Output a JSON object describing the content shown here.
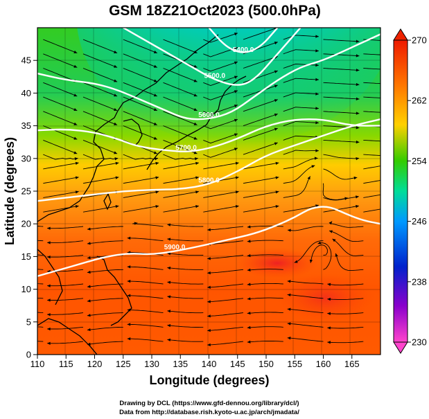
{
  "title": "GSM 18Z21Oct2023 (500.0hPa)",
  "xlabel": "Longitude (degrees)",
  "ylabel": "Latitude  (degrees)",
  "credit_line1": "Drawing by DCL (https://www.gfd-dennou.org/library/dcl/)",
  "credit_line2": "Data from http://database.rish.kyoto-u.ac.jp/arch/jmadata/",
  "chart_data": {
    "type": "heatmap",
    "x_range": [
      110,
      170
    ],
    "y_range": [
      0,
      50
    ],
    "x_ticks": [
      "110",
      "115",
      "120",
      "125",
      "130",
      "135",
      "140",
      "145",
      "150",
      "155",
      "160",
      "165"
    ],
    "y_ticks": [
      "0",
      "5",
      "10",
      "15",
      "20",
      "25",
      "30",
      "35",
      "40",
      "45"
    ],
    "colorbar": {
      "range": [
        230,
        270
      ],
      "ticks": [
        "230",
        "238",
        "246",
        "254",
        "262",
        "270"
      ],
      "colors": [
        "#ff33bb",
        "#8800cc",
        "#0022cc",
        "#00aaff",
        "#00ddaa",
        "#33cc00",
        "#ffcc00",
        "#ff7700",
        "#ee2200"
      ]
    },
    "contour_labels": [
      "5400.0",
      "5500.0",
      "5600.0",
      "5700.0",
      "5800.0",
      "5900.0"
    ],
    "contours": [
      {
        "label": "5400.0",
        "points": [
          [
            140,
            50
          ],
          [
            143,
            47
          ],
          [
            146,
            46
          ],
          [
            149,
            47
          ],
          [
            152,
            50
          ]
        ]
      },
      {
        "label": "5500.0",
        "points": [
          [
            125,
            50
          ],
          [
            129,
            48
          ],
          [
            133,
            46
          ],
          [
            137,
            44
          ],
          [
            141,
            42
          ],
          [
            145,
            41
          ],
          [
            148,
            42
          ],
          [
            152,
            46
          ],
          [
            156,
            50
          ]
        ]
      },
      {
        "label": "5600.0",
        "points": [
          [
            110,
            43
          ],
          [
            115,
            42
          ],
          [
            120,
            41.5
          ],
          [
            124,
            40.5
          ],
          [
            128,
            39
          ],
          [
            132,
            37.5
          ],
          [
            136,
            36
          ],
          [
            140,
            36
          ],
          [
            144,
            37
          ],
          [
            148,
            39.5
          ],
          [
            152,
            42
          ],
          [
            156,
            44
          ],
          [
            160,
            45
          ],
          [
            165,
            47
          ],
          [
            170,
            49
          ]
        ]
      },
      {
        "label": "5700.0",
        "points": [
          [
            110,
            34.3
          ],
          [
            115,
            34.5
          ],
          [
            120,
            34
          ],
          [
            124,
            33
          ],
          [
            127,
            32
          ],
          [
            130,
            31.5
          ],
          [
            133,
            31.2
          ],
          [
            136,
            31
          ],
          [
            140,
            31.5
          ],
          [
            145,
            33
          ],
          [
            150,
            35
          ],
          [
            155,
            36
          ],
          [
            160,
            36
          ],
          [
            165,
            35
          ],
          [
            170,
            35
          ]
        ]
      },
      {
        "label": "5800.0",
        "points": [
          [
            110,
            23.5
          ],
          [
            115,
            24
          ],
          [
            120,
            24.5
          ],
          [
            125,
            25
          ],
          [
            130,
            25.2
          ],
          [
            135,
            25.3
          ],
          [
            140,
            26
          ],
          [
            145,
            28
          ],
          [
            150,
            30.5
          ],
          [
            155,
            32
          ],
          [
            160,
            33.5
          ],
          [
            165,
            35
          ],
          [
            170,
            36
          ]
        ]
      },
      {
        "label": "5900.0",
        "points": [
          [
            110,
            12
          ],
          [
            114,
            13
          ],
          [
            118,
            14
          ],
          [
            122,
            15
          ],
          [
            126,
            15.5
          ],
          [
            130,
            15.3
          ],
          [
            134,
            15.8
          ],
          [
            138,
            16.5
          ],
          [
            143,
            17.5
          ],
          [
            148,
            18.5
          ],
          [
            152,
            19.8
          ],
          [
            155,
            21
          ],
          [
            158,
            22.5
          ],
          [
            161,
            22.7
          ],
          [
            164,
            21.5
          ],
          [
            167,
            20.5
          ],
          [
            170,
            20
          ]
        ]
      }
    ]
  }
}
